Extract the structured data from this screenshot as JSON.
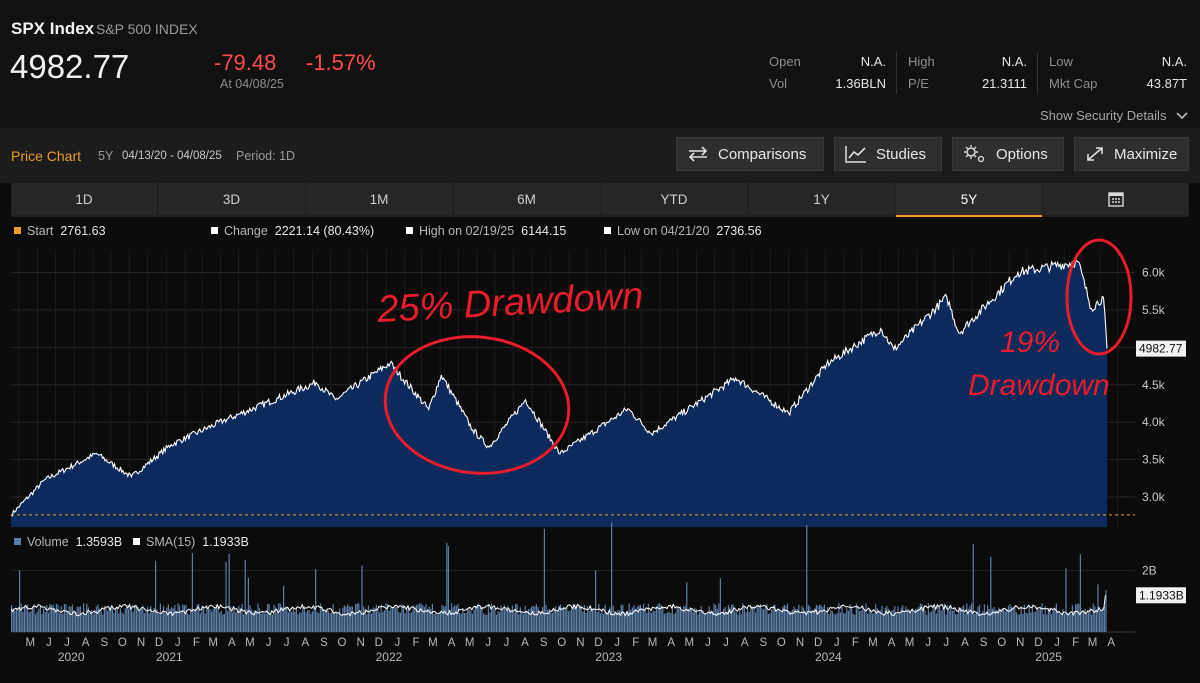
{
  "header": {
    "ticker": "SPX Index",
    "name": "S&P 500 INDEX",
    "price": "4982.77",
    "change": "-79.48",
    "change_pct": "-1.57%",
    "as_of": "At 04/08/25",
    "show_details": "Show Security Details",
    "quote": {
      "open_label": "Open",
      "open_value": "N.A.",
      "vol_label": "Vol",
      "vol_value": "1.36BLN",
      "high_label": "High",
      "high_value": "N.A.",
      "pe_label": "P/E",
      "pe_value": "21.3111",
      "low_label": "Low",
      "low_value": "N.A.",
      "mktcap_label": "Mkt Cap",
      "mktcap_value": "43.87T"
    }
  },
  "toolbar": {
    "title": "Price Chart",
    "period_code": "5Y",
    "date_range": "04/13/20 - 04/08/25",
    "period": "Period: 1D",
    "comparisons": "Comparisons",
    "studies": "Studies",
    "options": "Options",
    "maximize": "Maximize"
  },
  "tabs": [
    "1D",
    "3D",
    "1M",
    "6M",
    "YTD",
    "1Y",
    "5Y"
  ],
  "active_tab": "5Y",
  "legend": {
    "start_label": "Start",
    "start_value": "2761.63",
    "change_label": "Change",
    "change_value": "2221.14 (80.43%)",
    "high_label": "High on 02/19/25",
    "high_value": "6144.15",
    "low_label": "Low on 04/21/20",
    "low_value": "2736.56"
  },
  "volume_legend": {
    "volume_label": "Volume",
    "volume_value": "1.3593B",
    "sma_label": "SMA(15)",
    "sma_value": "1.1933B"
  },
  "annotations": {
    "left_text": "25% Drawdown",
    "right_number": "19%",
    "right_word": "Drawdown"
  },
  "colors": {
    "accent": "#f09a2a",
    "negative": "#ff4b4b",
    "area_fill": "#0c2a5c",
    "line": "#ffffff",
    "volume_bar": "#5b7ea6",
    "annotation": "#e81c2a"
  },
  "chart_data": [
    {
      "type": "area",
      "title": "",
      "x_unit": "date",
      "x": [
        "2020-04-13",
        "2020-06-08",
        "2020-09-02",
        "2020-10-30",
        "2021-01-04",
        "2021-04-01",
        "2021-07-01",
        "2021-09-02",
        "2021-10-04",
        "2022-01-03",
        "2022-03-08",
        "2022-03-29",
        "2022-05-20",
        "2022-06-16",
        "2022-08-16",
        "2022-10-12",
        "2023-02-02",
        "2023-03-13",
        "2023-07-31",
        "2023-10-27",
        "2023-12-29",
        "2024-03-28",
        "2024-04-19",
        "2024-07-16",
        "2024-08-05",
        "2024-11-11",
        "2025-02-19",
        "2025-03-13",
        "2025-04-02",
        "2025-04-08"
      ],
      "values": [
        2761.63,
        3230,
        3580,
        3270,
        3700,
        4020,
        4320,
        4530,
        4300,
        4790,
        4170,
        4630,
        3900,
        3666,
        4300,
        3577,
        4180,
        3850,
        4590,
        4120,
        4770,
        5250,
        4970,
        5670,
        5190,
        6000,
        6144.15,
        5520,
        5670,
        4982.77
      ],
      "ylim": [
        2600,
        6300
      ],
      "y_ticks": [
        "3.0k",
        "3.5k",
        "4.0k",
        "4.5k",
        "5.0k",
        "5.5k",
        "6.0k"
      ],
      "y_tick_values": [
        3000,
        3500,
        4000,
        4500,
        5000,
        5500,
        6000
      ],
      "last_value_label": "4982.77",
      "start_reference": 2761.63,
      "grid": true
    },
    {
      "type": "bar",
      "title": "",
      "series": [
        {
          "name": "Volume"
        },
        {
          "name": "SMA(15)"
        }
      ],
      "latest_volume": 1.3593,
      "latest_sma": 1.1933,
      "typical_volume": 0.75,
      "unit": "B",
      "y_ticks": [
        "2B"
      ],
      "y_tick_values": [
        2
      ],
      "ylim": [
        0,
        2.6
      ],
      "last_value_label": "1.1933B"
    }
  ],
  "x_axis": {
    "month_labels": [
      "M",
      "J",
      "J",
      "A",
      "S",
      "O",
      "N",
      "D",
      "J",
      "F",
      "M",
      "A",
      "M",
      "J",
      "J",
      "A",
      "S",
      "O",
      "N",
      "D",
      "J",
      "F",
      "M",
      "A",
      "M",
      "J",
      "J",
      "A",
      "S",
      "O",
      "N",
      "D",
      "J",
      "F",
      "M",
      "A",
      "M",
      "J",
      "J",
      "A",
      "S",
      "O",
      "N",
      "D",
      "J",
      "F",
      "M",
      "A",
      "M",
      "J",
      "J",
      "A",
      "S",
      "O",
      "N",
      "D",
      "J",
      "F",
      "M",
      "A"
    ],
    "years": [
      "2020",
      "2021",
      "2022",
      "2023",
      "2024",
      "2025"
    ]
  }
}
